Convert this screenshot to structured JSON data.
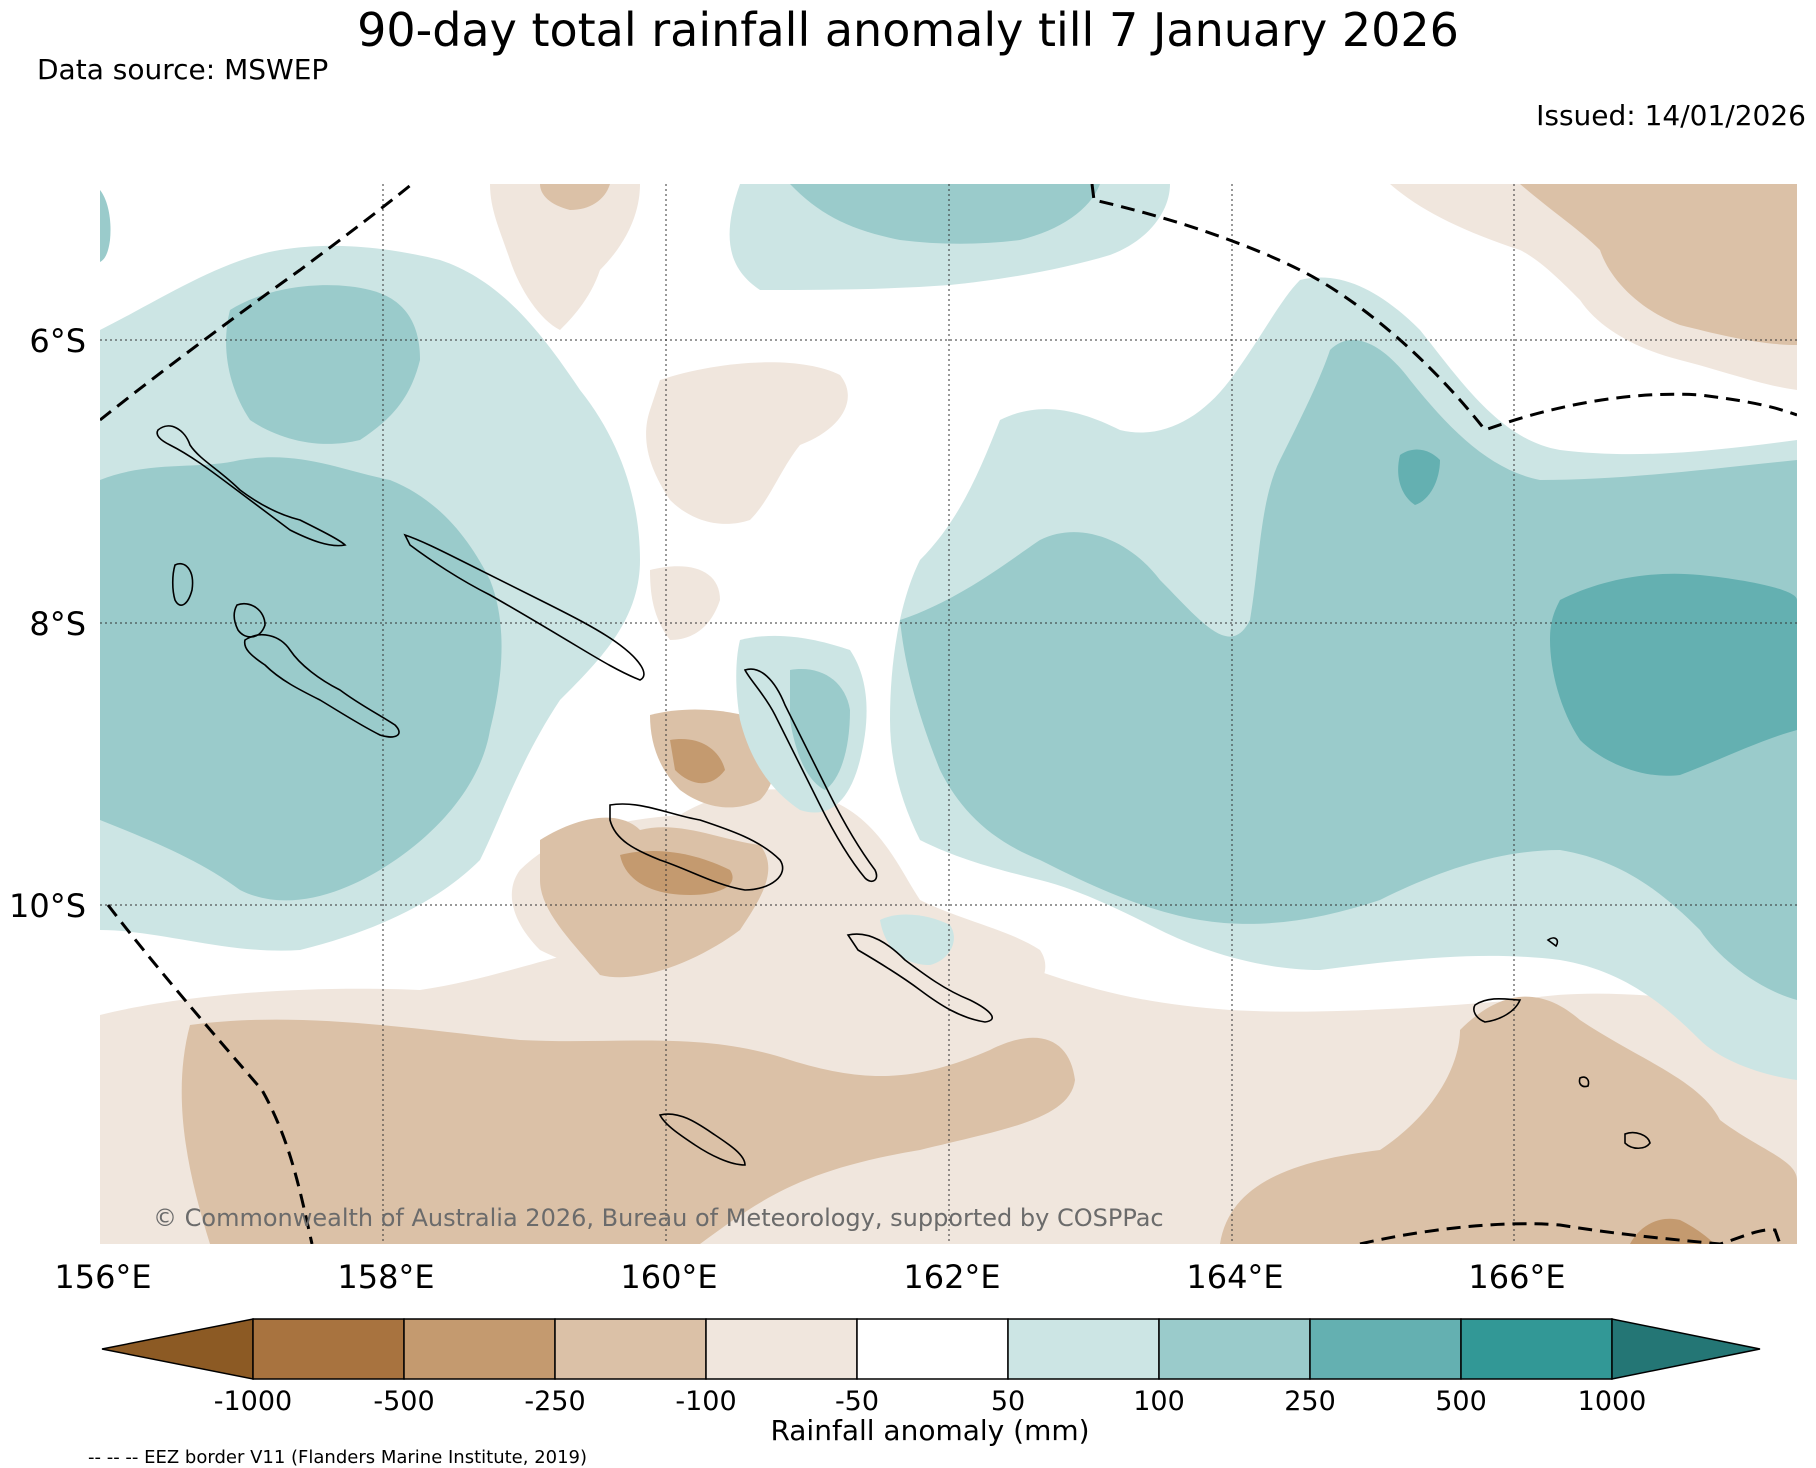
{
  "title": "90-day total rainfall anomaly till 7 January 2026",
  "data_source": "Data source: MSWEP",
  "issued": "Issued: 14/01/2026",
  "copyright": "© Commonwealth of Australia 2026, Bureau of Meteorology, supported by COSPPac",
  "map": {
    "lat_labels": [
      "6°S",
      "8°S",
      "10°S"
    ],
    "lon_labels": [
      "156°E",
      "158°E",
      "160°E",
      "162°E",
      "164°E",
      "166°E"
    ]
  },
  "colorbar": {
    "title": "Rainfall anomaly (mm)",
    "tick_labels": [
      "-1000",
      "-500",
      "-250",
      "-100",
      "-50",
      "50",
      "100",
      "250",
      "500",
      "1000"
    ],
    "colors": [
      "#8c5a24",
      "#a8733f",
      "#c49a6f",
      "#dbc1a7",
      "#f0e6dd",
      "#ffffff",
      "#cce5e4",
      "#9acbcb",
      "#64b0b1",
      "#329896",
      "#247675"
    ]
  },
  "legend_note": "-- -- -- EEZ border V11 (Flanders Marine Institute, 2019)"
}
